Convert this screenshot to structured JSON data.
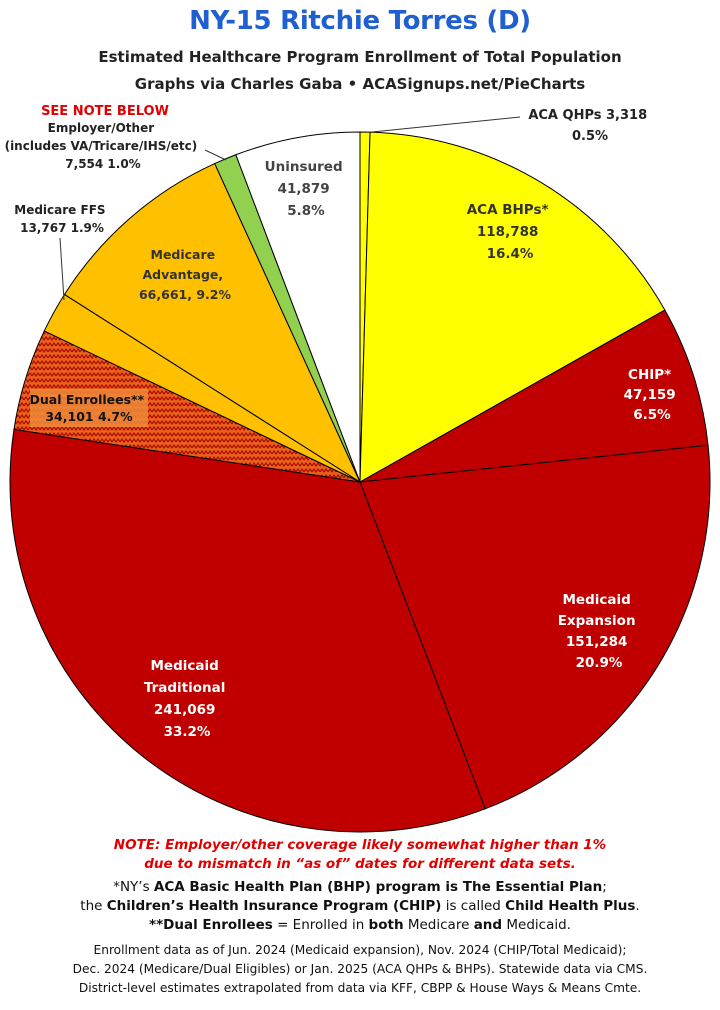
{
  "header": {
    "title": "NY-15 Ritchie Torres (D)",
    "subtitle_line1": "Estimated Healthcare Program Enrollment of Total Population",
    "subtitle_line2": "Graphs via Charles Gaba  •  ACASignups.net/PieCharts"
  },
  "chart_data": {
    "type": "pie",
    "title": "NY-15 Ritchie Torres (D)",
    "subtitle": "Estimated Healthcare Program Enrollment of Total Population",
    "start": "12 o'clock, clockwise",
    "slices": [
      {
        "name": "ACA QHPs",
        "value": 3318,
        "percent": 0.5,
        "color": "#ffff00"
      },
      {
        "name": "ACA BHPs*",
        "value": 118788,
        "percent": 16.4,
        "color": "#ffff00"
      },
      {
        "name": "CHIP*",
        "value": 47159,
        "percent": 6.5,
        "color": "#c00000"
      },
      {
        "name": "Medicaid Expansion",
        "value": 151284,
        "percent": 20.9,
        "color": "#c00000"
      },
      {
        "name": "Medicaid Traditional",
        "value": 241069,
        "percent": 33.2,
        "color": "#c00000"
      },
      {
        "name": "Dual Enrollees**",
        "value": 34101,
        "percent": 4.7,
        "color": "#e8621a",
        "pattern": "zigzag"
      },
      {
        "name": "Medicare FFS",
        "value": 13767,
        "percent": 1.9,
        "color": "#ffc000"
      },
      {
        "name": "Medicare Advantage",
        "value": 66661,
        "percent": 9.2,
        "color": "#ffc000"
      },
      {
        "name": "Employer/Other",
        "value": 7554,
        "percent": 1.0,
        "color": "#92d050"
      },
      {
        "name": "Uninsured",
        "value": 41879,
        "percent": 5.8,
        "color": "#ffffff"
      }
    ]
  },
  "labels": {
    "aca_qhps": [
      "ACA QHPs 3,318",
      "0.5%"
    ],
    "aca_bhps": [
      "ACA BHPs*",
      "118,788",
      "16.4%"
    ],
    "chip": [
      "CHIP*",
      "47,159",
      "6.5%"
    ],
    "medicaid_expansion": [
      "Medicaid",
      "Expansion",
      "151,284",
      "20.9%"
    ],
    "medicaid_traditional": [
      "Medicaid",
      "Traditional",
      "241,069",
      "33.2%"
    ],
    "dual_enrollees": [
      "Dual Enrollees**",
      "34,101 4.7%"
    ],
    "medicare_ffs": [
      "Medicare FFS",
      "13,767 1.9%"
    ],
    "medicare_advantage": [
      "Medicare",
      "Advantage,",
      "66,661, 9.2%"
    ],
    "employer_other": [
      "Employer/Other",
      "(includes VA/Tricare/IHS/etc)",
      "7,554 1.0%"
    ],
    "uninsured": [
      "Uninsured",
      "41,879",
      "5.8%"
    ],
    "see_note": "SEE NOTE BELOW"
  },
  "footer": {
    "note_line1": "NOTE: Employer/other coverage likely somewhat higher than 1%",
    "note_line2": "due to mismatch in “as of” dates for different data sets.",
    "bhp_a": "*NY’s ",
    "bhp_b": "ACA Basic Health Plan (BHP) program is The Essential Plan",
    "bhp_c": ";",
    "chip_a": "the ",
    "chip_b": "Children’s Health Insurance Program (CHIP)",
    "chip_c": " is called ",
    "chip_d": "Child Health Plus",
    "chip_e": ".",
    "dual_a": "**Dual Enrollees",
    "dual_b": " = Enrolled in ",
    "dual_c": "both",
    "dual_d": " Medicare ",
    "dual_e": "and",
    "dual_f": " Medicaid.",
    "source_line1": "Enrollment data as of Jun. 2024 (Medicaid expansion), Nov. 2024 (CHIP/Total Medicaid);",
    "source_line2": "Dec. 2024 (Medicare/Dual Eligibles) or Jan. 2025 (ACA QHPs & BHPs). Statewide data via CMS.",
    "source_line3": "District-level estimates extrapolated from data via KFF, CBPP & House Ways & Means Cmte."
  }
}
